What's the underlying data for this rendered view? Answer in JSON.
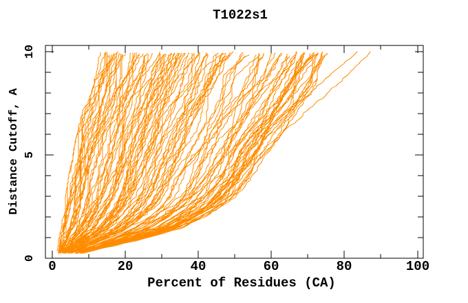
{
  "chart_data": {
    "type": "line",
    "title": "T1022s1",
    "xlabel": "Percent of Residues (CA)",
    "ylabel": "Distance Cutoff, A",
    "xlim": [
      -1.8,
      101.6
    ],
    "ylim": [
      0,
      10.3
    ],
    "grid": false,
    "series_color": "#FF8C00",
    "axis_color": "#000000",
    "x_ticks": {
      "major_values": [
        0,
        20,
        40,
        60,
        80,
        100
      ],
      "major_labels": [
        "0",
        "20",
        "40",
        "60",
        "80",
        "100"
      ],
      "minor_values": [
        10,
        30,
        50,
        70,
        90
      ]
    },
    "y_ticks": {
      "major_values": [
        0,
        5,
        10
      ],
      "major_labels": [
        "0",
        "5",
        "10"
      ],
      "minor_values": [
        1,
        2,
        3,
        4,
        6,
        7,
        8,
        9
      ]
    },
    "ensemble": {
      "n_curves": 120,
      "seed": 1022,
      "cutoff_start": 0.22,
      "cutoff_end": 10.0,
      "step": 0.12,
      "spread_power": 1.25,
      "wobble_amp": 2.2,
      "jitter": 0.7,
      "envelope": {
        "cutoffs": [
          0.25,
          0.5,
          1,
          1.5,
          2,
          2.5,
          3,
          4,
          5,
          6,
          7,
          8,
          9,
          10
        ],
        "p_min": [
          1.6,
          1.9,
          2.3,
          2.8,
          3.2,
          3.8,
          4.3,
          5.2,
          6.3,
          7.4,
          8.8,
          10.3,
          11.9,
          13.6
        ],
        "p_max": [
          8,
          14,
          26,
          36,
          42,
          47,
          50.5,
          55,
          58.5,
          62,
          66.5,
          70.5,
          74,
          77.5
        ]
      }
    },
    "outliers": [
      {
        "cutoffs": [
          0.3,
          1,
          2,
          3,
          4,
          5,
          6,
          7,
          8,
          9,
          10
        ],
        "percents": [
          5,
          16,
          30,
          42,
          50,
          56.5,
          62.5,
          69,
          75.5,
          81.5,
          87
        ]
      },
      {
        "cutoffs": [
          0.3,
          1,
          2,
          3,
          4,
          5,
          6,
          7,
          8,
          9,
          10
        ],
        "percents": [
          4.5,
          14,
          27,
          38,
          46,
          53,
          58.5,
          64.5,
          70.5,
          77,
          83.5
        ]
      }
    ]
  }
}
